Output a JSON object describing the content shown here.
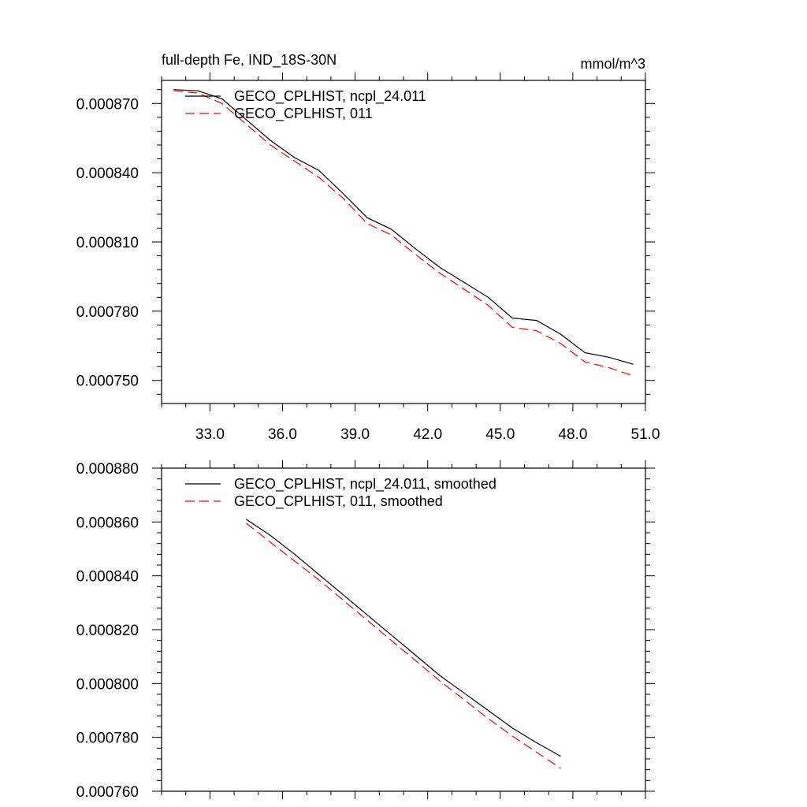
{
  "chart_data": [
    {
      "type": "line",
      "title": "full-depth Fe, IND_18S-30N",
      "units": "mmol/m^3",
      "xlim": [
        31.0,
        51.0
      ],
      "ylim": [
        0.00074,
        0.00088
      ],
      "xticks": [
        33.0,
        36.0,
        39.0,
        42.0,
        45.0,
        48.0,
        51.0
      ],
      "xtick_labels": [
        "33.0",
        "36.0",
        "39.0",
        "42.0",
        "45.0",
        "48.0",
        "51.0"
      ],
      "yticks": [
        0.00075,
        0.00078,
        0.00081,
        0.00084,
        0.00087
      ],
      "ytick_labels": [
        "0.000750",
        "0.000780",
        "0.000810",
        "0.000840",
        "0.000870"
      ],
      "x": [
        31.5,
        32.5,
        33.5,
        34.5,
        35.5,
        36.5,
        37.5,
        38.5,
        39.5,
        40.5,
        41.5,
        42.5,
        43.5,
        44.5,
        45.5,
        46.5,
        47.5,
        48.5,
        49.5,
        50.5
      ],
      "legend_position": "top-left",
      "series": [
        {
          "name": "GECO_CPLHIST, ncpl_24.011",
          "color": "#000000",
          "dash": "solid",
          "values": [
            0.000876,
            0.0008755,
            0.000872,
            0.000863,
            0.000854,
            0.0008465,
            0.000841,
            0.000831,
            0.0008205,
            0.0008155,
            0.000807,
            0.000799,
            0.0007925,
            0.000786,
            0.000777,
            0.000776,
            0.00077,
            0.000762,
            0.00076,
            0.000757
          ]
        },
        {
          "name": "GECO_CPLHIST, 011",
          "color": "#ff0000",
          "dash": "dashed",
          "values": [
            0.0008755,
            0.0008745,
            0.00087,
            0.000861,
            0.000852,
            0.000845,
            0.000838,
            0.000829,
            0.000818,
            0.000813,
            0.0008045,
            0.0007965,
            0.0007895,
            0.0007825,
            0.000773,
            0.0007715,
            0.000766,
            0.000758,
            0.0007555,
            0.000752
          ]
        }
      ]
    },
    {
      "type": "line",
      "xlim": [
        31.0,
        51.0
      ],
      "ylim": [
        0.00076,
        0.00088
      ],
      "xticks": [
        33.0,
        36.0,
        39.0,
        42.0,
        45.0,
        48.0,
        51.0
      ],
      "yticks": [
        0.00076,
        0.00078,
        0.0008,
        0.00082,
        0.00084,
        0.00086,
        0.00088
      ],
      "ytick_labels": [
        "0.000760",
        "0.000780",
        "0.000800",
        "0.000820",
        "0.000840",
        "0.000860",
        "0.000880"
      ],
      "x": [
        34.5,
        35.5,
        36.5,
        37.5,
        38.5,
        39.5,
        40.5,
        41.5,
        42.5,
        43.5,
        44.5,
        45.5,
        46.5,
        47.5
      ],
      "legend_position": "top-left",
      "series": [
        {
          "name": "GECO_CPLHIST, ncpl_24.011, smoothed",
          "color": "#000000",
          "dash": "solid",
          "values": [
            0.000861,
            0.000855,
            0.000848,
            0.0008405,
            0.000833,
            0.0008255,
            0.000818,
            0.0008105,
            0.000803,
            0.0007965,
            0.00079,
            0.0007835,
            0.000778,
            0.000773
          ]
        },
        {
          "name": "GECO_CPLHIST, 011, smoothed",
          "color": "#ff0000",
          "dash": "dashed",
          "values": [
            0.0008595,
            0.0008525,
            0.0008455,
            0.0008385,
            0.000831,
            0.0008235,
            0.000816,
            0.0008085,
            0.000801,
            0.000794,
            0.000787,
            0.0007805,
            0.0007745,
            0.0007685
          ]
        }
      ]
    }
  ]
}
